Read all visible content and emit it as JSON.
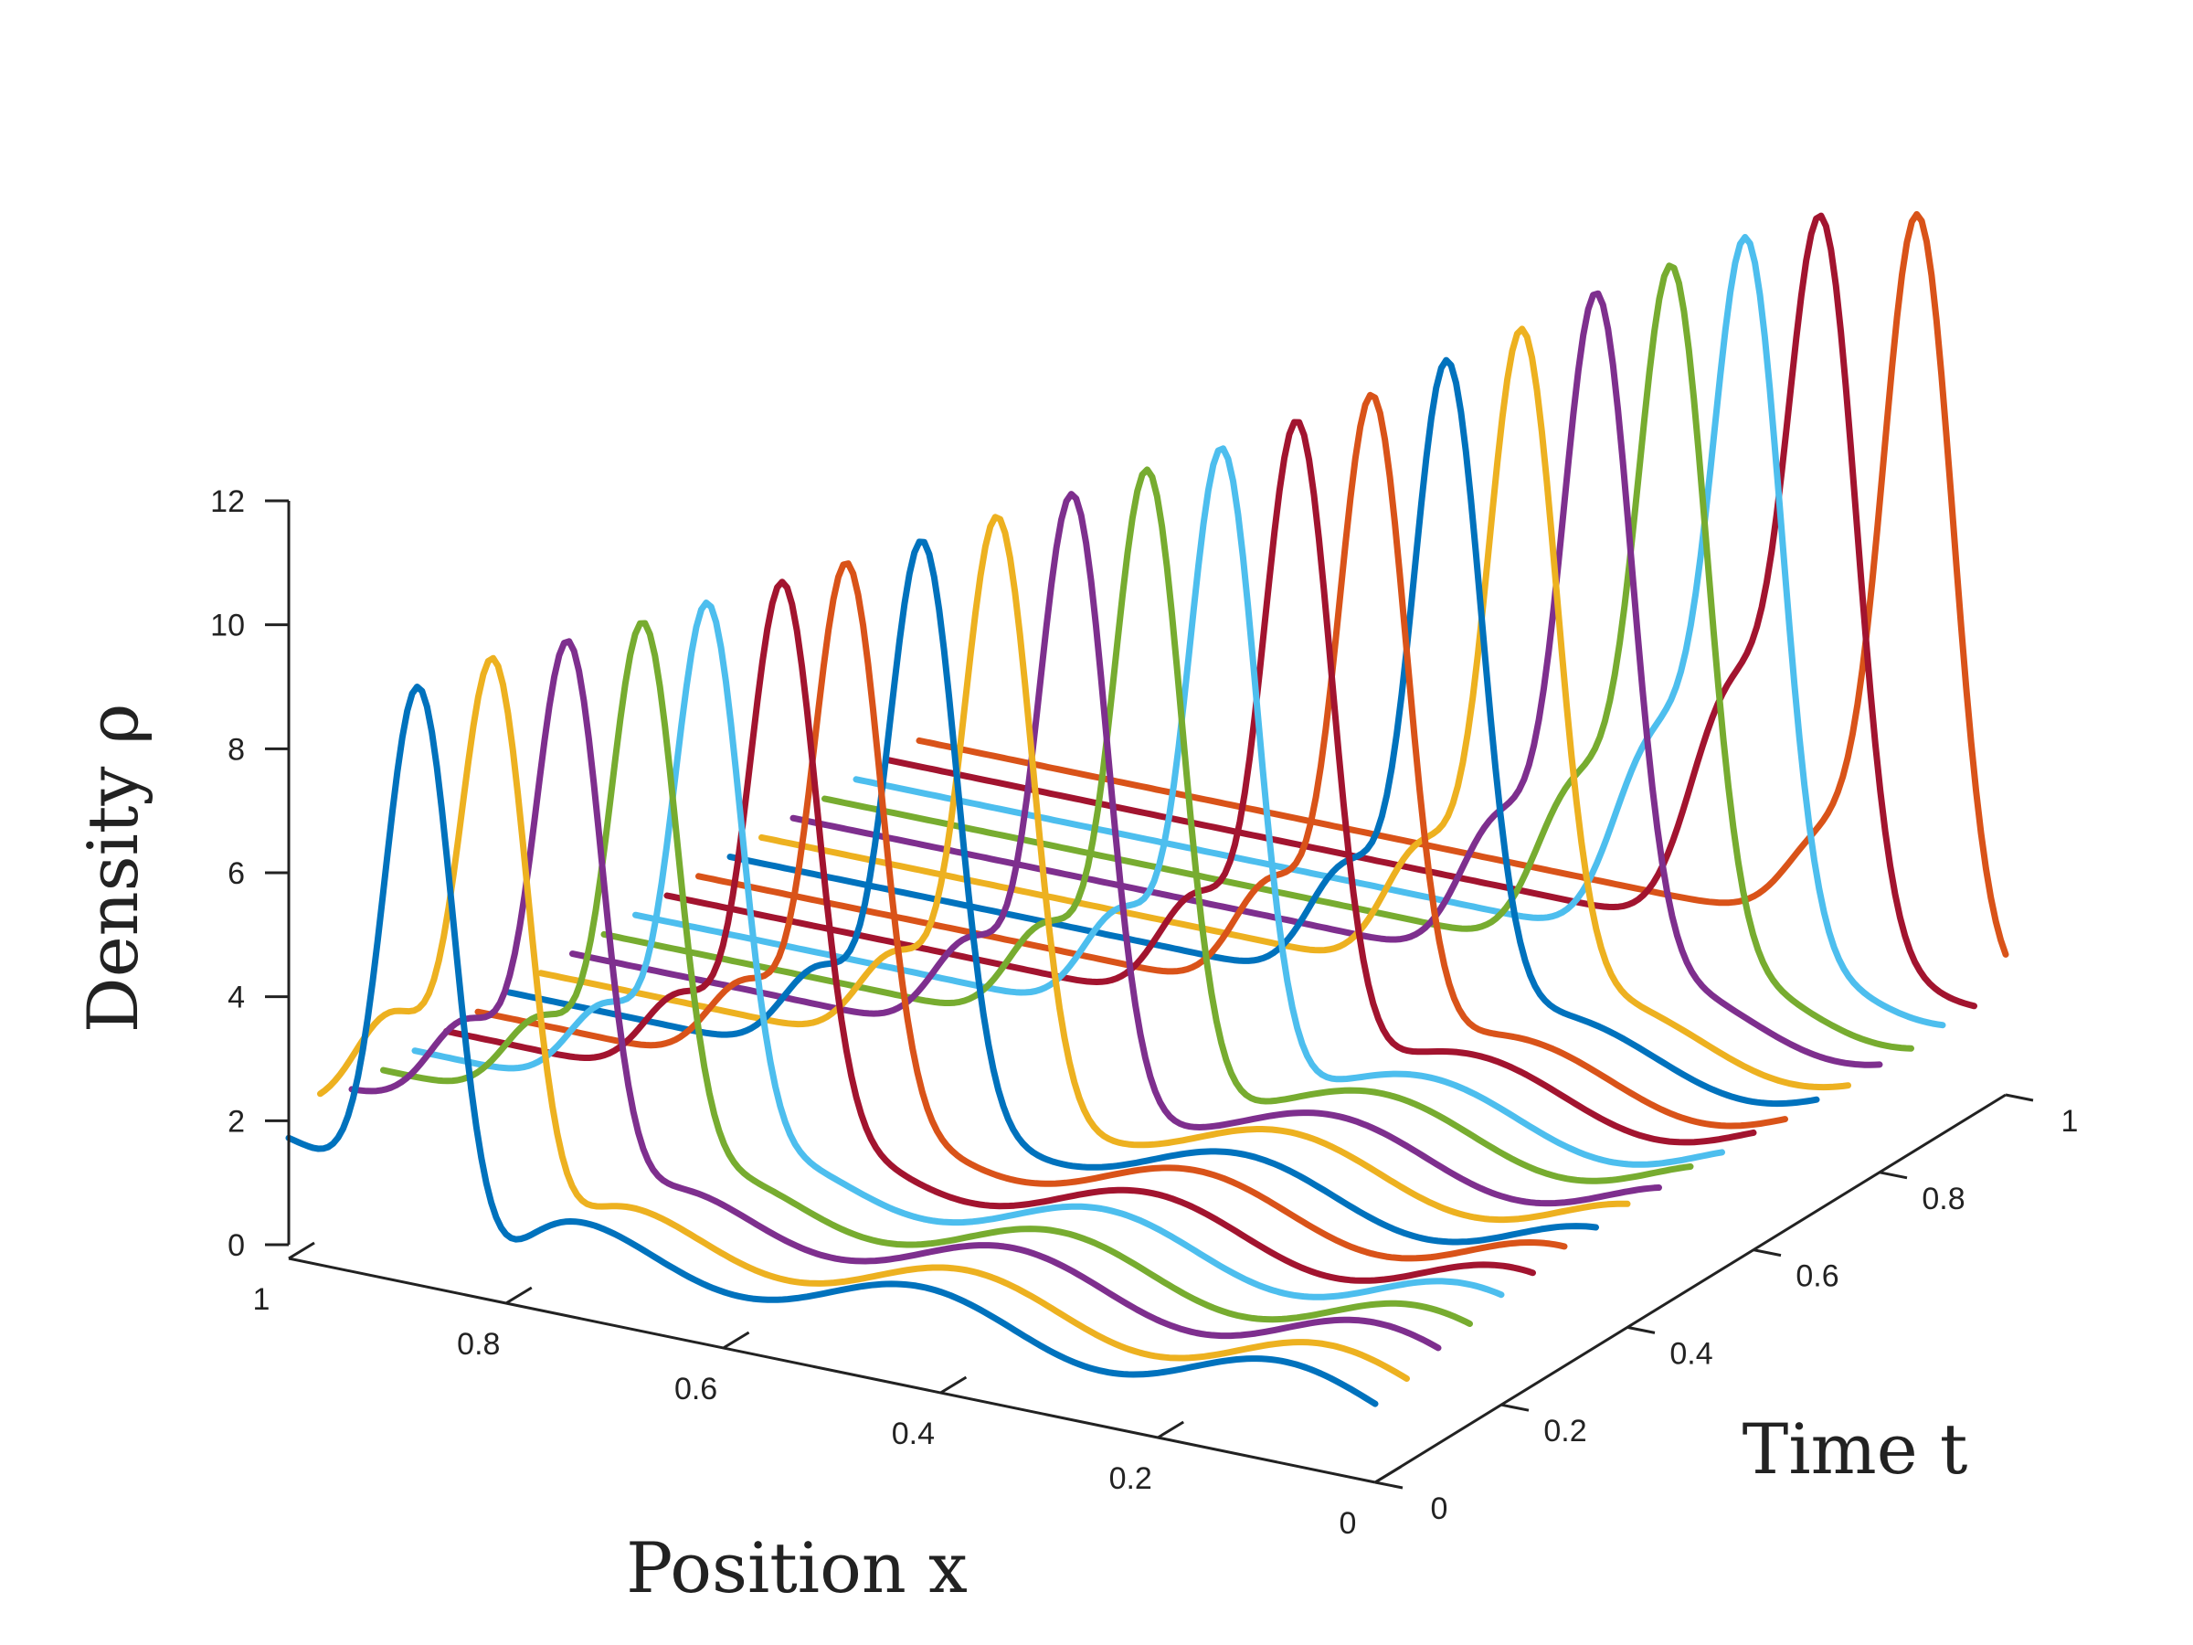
{
  "chart_data": {
    "type": "line",
    "variant": "3d-waterfall",
    "title": "",
    "xlabel": "Position x",
    "ylabel": "Time t",
    "zlabel": "Density ρ",
    "xlim": [
      0,
      1
    ],
    "ylim": [
      0,
      1
    ],
    "zlim": [
      0,
      12
    ],
    "x_ticks": [
      "0",
      "0.2",
      "0.4",
      "0.6",
      "0.8",
      "1"
    ],
    "y_ticks": [
      "0",
      "0.2",
      "0.4",
      "0.6",
      "0.8",
      "1"
    ],
    "z_ticks": [
      "0",
      "2",
      "4",
      "6",
      "8",
      "10",
      "12"
    ],
    "grid": false,
    "legend": "none",
    "colors": [
      "#0072BD",
      "#EDB120",
      "#7E2F8E",
      "#77AC30",
      "#4DBEEE",
      "#A2142F",
      "#D95319"
    ],
    "series": [
      {
        "t": 0.0,
        "values": {
          "front_level": 1.1,
          "peak": 9.6,
          "peak_x": 0.88,
          "right_edge": 0.79,
          "secondary_peak": 0
        }
      },
      {
        "t": 0.05,
        "values": {
          "front_level": 1.1,
          "peak": 9.8,
          "peak_x": 0.84,
          "right_edge": 0.77,
          "secondary_peak": 3.6
        }
      },
      {
        "t": 0.1,
        "values": {
          "front_level": 1.2,
          "peak": 9.9,
          "peak_x": 0.8,
          "right_edge": 0.74,
          "secondary_peak": 3.1
        }
      },
      {
        "t": 0.15,
        "values": {
          "front_level": 1.2,
          "peak": 10.0,
          "peak_x": 0.76,
          "right_edge": 0.71,
          "secondary_peak": 2.9
        }
      },
      {
        "t": 0.2,
        "values": {
          "front_level": 1.3,
          "peak": 10.1,
          "peak_x": 0.73,
          "right_edge": 0.68,
          "secondary_peak": 2.9
        }
      },
      {
        "t": 0.25,
        "values": {
          "front_level": 1.3,
          "peak": 10.2,
          "peak_x": 0.69,
          "right_edge": 0.65,
          "secondary_peak": 2.9
        }
      },
      {
        "t": 0.3,
        "values": {
          "front_level": 1.4,
          "peak": 10.3,
          "peak_x": 0.66,
          "right_edge": 0.62,
          "secondary_peak": 2.9
        }
      },
      {
        "t": 0.35,
        "values": {
          "front_level": 1.4,
          "peak": 10.4,
          "peak_x": 0.62,
          "right_edge": 0.59,
          "secondary_peak": 3.0
        }
      },
      {
        "t": 0.4,
        "values": {
          "front_level": 1.5,
          "peak": 10.5,
          "peak_x": 0.58,
          "right_edge": 0.56,
          "secondary_peak": 3.1
        }
      },
      {
        "t": 0.45,
        "values": {
          "front_level": 1.5,
          "peak": 10.6,
          "peak_x": 0.54,
          "right_edge": 0.53,
          "secondary_peak": 3.2
        }
      },
      {
        "t": 0.5,
        "values": {
          "front_level": 1.6,
          "peak": 10.7,
          "peak_x": 0.5,
          "right_edge": 0.5,
          "secondary_peak": 3.3
        }
      },
      {
        "t": 0.55,
        "values": {
          "front_level": 1.6,
          "peak": 10.8,
          "peak_x": 0.46,
          "right_edge": 0.47,
          "secondary_peak": 3.4
        }
      },
      {
        "t": 0.6,
        "values": {
          "front_level": 1.7,
          "peak": 10.9,
          "peak_x": 0.42,
          "right_edge": 0.44,
          "secondary_peak": 3.5
        }
      },
      {
        "t": 0.65,
        "values": {
          "front_level": 1.7,
          "peak": 11.0,
          "peak_x": 0.38,
          "right_edge": 0.41,
          "secondary_peak": 3.6
        }
      },
      {
        "t": 0.7,
        "values": {
          "front_level": 1.8,
          "peak": 11.1,
          "peak_x": 0.34,
          "right_edge": 0.38,
          "secondary_peak": 3.7
        }
      },
      {
        "t": 0.75,
        "values": {
          "front_level": 1.8,
          "peak": 11.2,
          "peak_x": 0.3,
          "right_edge": 0.35,
          "secondary_peak": 3.9
        }
      },
      {
        "t": 0.8,
        "values": {
          "front_level": 1.9,
          "peak": 11.3,
          "peak_x": 0.26,
          "right_edge": 0.32,
          "secondary_peak": 4.2
        }
      },
      {
        "t": 0.85,
        "values": {
          "front_level": 1.9,
          "peak": 11.4,
          "peak_x": 0.22,
          "right_edge": 0.29,
          "secondary_peak": 4.6
        }
      },
      {
        "t": 0.9,
        "values": {
          "front_level": 2.0,
          "peak": 11.5,
          "peak_x": 0.18,
          "right_edge": 0.26,
          "secondary_peak": 5.0
        }
      },
      {
        "t": 0.95,
        "values": {
          "front_level": 2.0,
          "peak": 11.7,
          "peak_x": 0.14,
          "right_edge": 0.23,
          "secondary_peak": 5.4
        }
      },
      {
        "t": 1.0,
        "values": {
          "front_level": 2.0,
          "peak": 12.0,
          "peak_x": 0.08,
          "right_edge": 0.2,
          "secondary_peak": 0
        }
      }
    ]
  }
}
